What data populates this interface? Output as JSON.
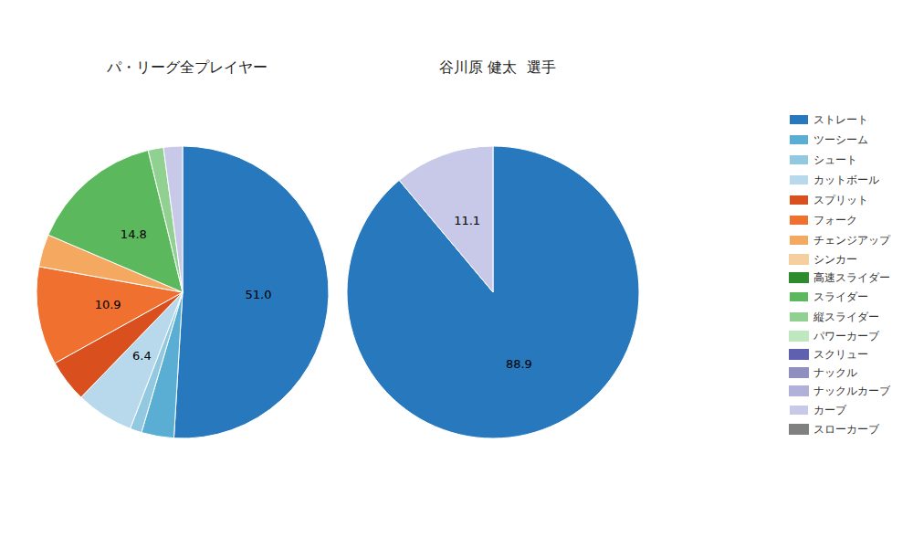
{
  "chart_data": [
    {
      "type": "pie",
      "title": "パ・リーグ全プレイヤー",
      "categories": [
        "ストレート",
        "ツーシーム",
        "シュート",
        "カットボール",
        "スプリット",
        "フォーク",
        "チェンジアップ",
        "スライダー",
        "縦スライダー",
        "カーブ"
      ],
      "values": [
        51.0,
        3.6,
        1.3,
        6.4,
        4.7,
        10.9,
        3.6,
        14.8,
        1.7,
        2.1
      ],
      "value_labels": [
        "51.0",
        null,
        null,
        "6.4",
        null,
        "10.9",
        null,
        "14.8",
        null,
        null
      ],
      "colors": [
        "#2878BD",
        "#5AAED4",
        "#92C9E0",
        "#B8D9EC",
        "#D94F1E",
        "#F07030",
        "#F5A860",
        "#5CB85C",
        "#90D090",
        "#C8C8E8"
      ],
      "data_labels": true
    },
    {
      "type": "pie",
      "title": "谷川原 健太  選手",
      "categories": [
        "ストレート",
        "カーブ"
      ],
      "values": [
        88.9,
        11.1
      ],
      "value_labels": [
        "88.9",
        "11.1"
      ],
      "colors": [
        "#2878BD",
        "#C8C8E8"
      ],
      "data_labels": true
    }
  ],
  "legend": "right",
  "legend_items": [
    {
      "name": "ストレート",
      "color": "#2878BD"
    },
    {
      "name": "ツーシーム",
      "color": "#5AAED4"
    },
    {
      "name": "シュート",
      "color": "#92C9E0"
    },
    {
      "name": "カットボール",
      "color": "#B8D9EC"
    },
    {
      "name": "スプリット",
      "color": "#D94F1E"
    },
    {
      "name": "フォーク",
      "color": "#F07030"
    },
    {
      "name": "チェンジアップ",
      "color": "#F5A860"
    },
    {
      "name": "シンカー",
      "color": "#F5CFA0"
    },
    {
      "name": "高速スライダー",
      "color": "#2E8B2E"
    },
    {
      "name": "スライダー",
      "color": "#5CB85C"
    },
    {
      "name": "縦スライダー",
      "color": "#90D090"
    },
    {
      "name": "パワーカーブ",
      "color": "#C0E8C0"
    },
    {
      "name": "スクリュー",
      "color": "#6060B0"
    },
    {
      "name": "ナックル",
      "color": "#9090C0"
    },
    {
      "name": "ナックルカーブ",
      "color": "#B0B0D8"
    },
    {
      "name": "カーブ",
      "color": "#C8C8E8"
    },
    {
      "name": "スローカーブ",
      "color": "#808080"
    }
  ]
}
